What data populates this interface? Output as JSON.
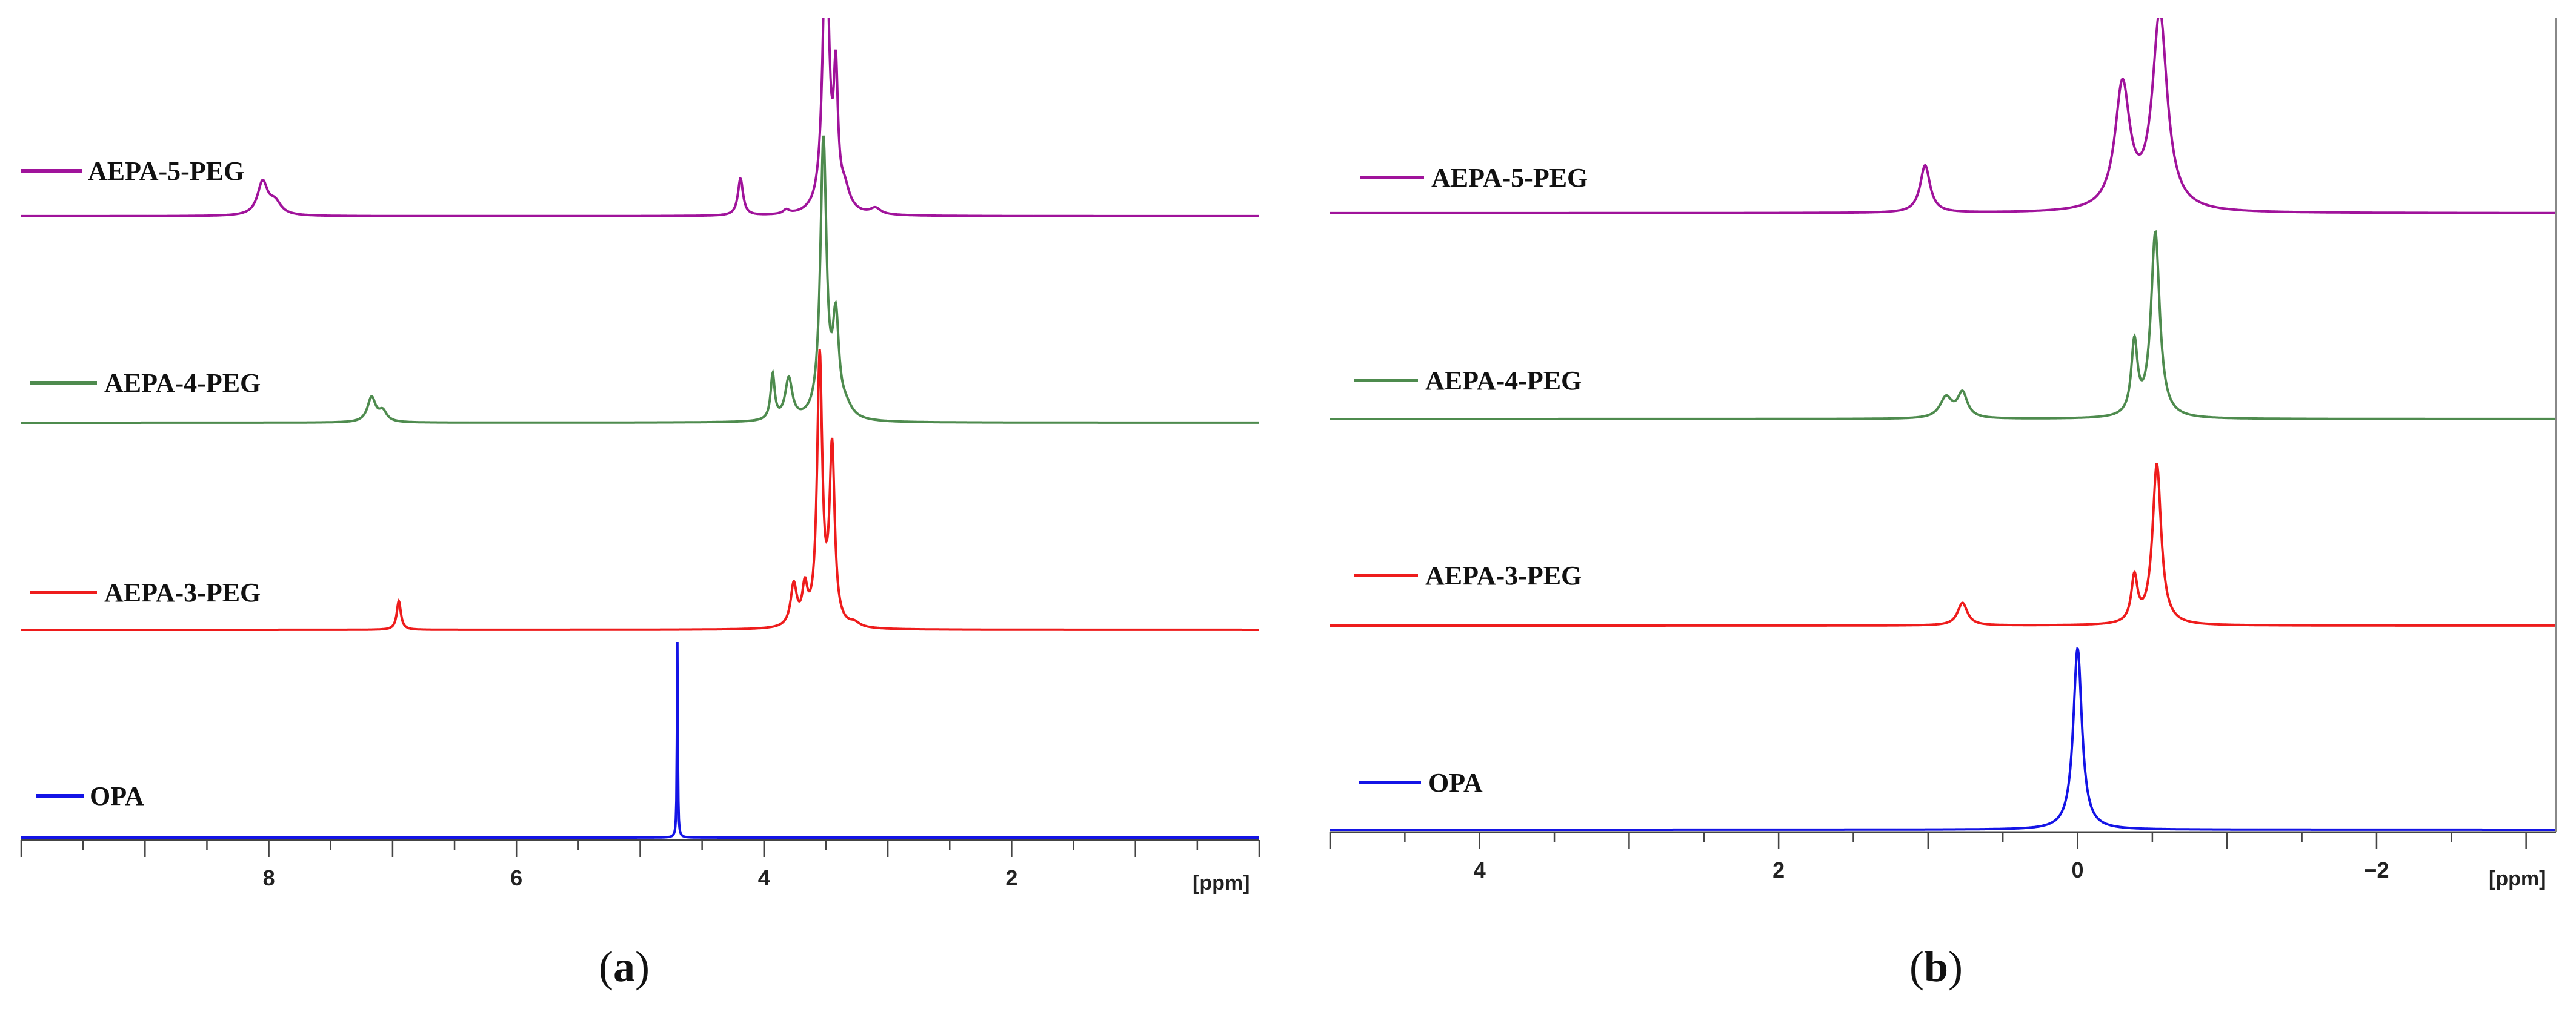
{
  "chart_data": [
    {
      "type": "line",
      "panel_label": "(a)",
      "xlabel": "[ppm]",
      "xlim": [
        10.0,
        0.0
      ],
      "x_ticks": [
        {
          "value": 8,
          "label": "8"
        },
        {
          "value": 6,
          "label": "6"
        },
        {
          "value": 4,
          "label": "4"
        },
        {
          "value": 2,
          "label": "2"
        }
      ],
      "series": [
        {
          "name": "AEPA-5-PEG",
          "color": "#a0139b",
          "offset": 3,
          "peaks": [
            {
              "ppm": 8.05,
              "height": 0.16,
              "width": 0.05
            },
            {
              "ppm": 7.95,
              "height": 0.06,
              "width": 0.06
            },
            {
              "ppm": 4.19,
              "height": 0.18,
              "width": 0.025
            },
            {
              "ppm": 3.82,
              "height": 0.02,
              "width": 0.03
            },
            {
              "ppm": 3.5,
              "height": 1.4,
              "width": 0.03
            },
            {
              "ppm": 3.42,
              "height": 0.6,
              "width": 0.02
            },
            {
              "ppm": 3.35,
              "height": 0.1,
              "width": 0.05
            },
            {
              "ppm": 3.1,
              "height": 0.03,
              "width": 0.05
            }
          ]
        },
        {
          "name": "AEPA-4-PEG",
          "color": "#4e8b4e",
          "offset": 2,
          "peaks": [
            {
              "ppm": 7.17,
              "height": 0.12,
              "width": 0.04
            },
            {
              "ppm": 7.08,
              "height": 0.05,
              "width": 0.04
            },
            {
              "ppm": 3.93,
              "height": 0.22,
              "width": 0.02
            },
            {
              "ppm": 3.8,
              "height": 0.2,
              "width": 0.035
            },
            {
              "ppm": 3.52,
              "height": 1.35,
              "width": 0.03
            },
            {
              "ppm": 3.42,
              "height": 0.45,
              "width": 0.03
            },
            {
              "ppm": 3.34,
              "height": 0.05,
              "width": 0.06
            }
          ]
        },
        {
          "name": "AEPA-3-PEG",
          "color": "#ee1c1c",
          "offset": 1,
          "peaks": [
            {
              "ppm": 6.95,
              "height": 0.14,
              "width": 0.02
            },
            {
              "ppm": 3.76,
              "height": 0.2,
              "width": 0.03
            },
            {
              "ppm": 3.67,
              "height": 0.17,
              "width": 0.025
            },
            {
              "ppm": 3.55,
              "height": 1.3,
              "width": 0.025
            },
            {
              "ppm": 3.45,
              "height": 0.85,
              "width": 0.025
            },
            {
              "ppm": 3.27,
              "height": 0.02,
              "width": 0.05
            }
          ]
        },
        {
          "name": "OPA",
          "color": "#1414e6",
          "offset": 0,
          "peaks": [
            {
              "ppm": 4.7,
              "height": 0.95,
              "width": 0.004
            }
          ]
        }
      ]
    },
    {
      "type": "line",
      "panel_label": "(b)",
      "xlabel": "[ppm]",
      "xlim": [
        5.0,
        -3.2
      ],
      "x_ticks": [
        {
          "value": 4,
          "label": "4"
        },
        {
          "value": 2,
          "label": "2"
        },
        {
          "value": 0,
          "label": "0"
        },
        {
          "value": -2,
          "label": "−2"
        }
      ],
      "series": [
        {
          "name": "AEPA-5-PEG",
          "color": "#a0139b",
          "offset": 3,
          "peaks": [
            {
              "ppm": 1.02,
              "height": 0.23,
              "width": 0.04
            },
            {
              "ppm": -0.3,
              "height": 0.6,
              "width": 0.06
            },
            {
              "ppm": -0.55,
              "height": 0.95,
              "width": 0.06
            }
          ]
        },
        {
          "name": "AEPA-4-PEG",
          "color": "#4e8b4e",
          "offset": 2,
          "peaks": [
            {
              "ppm": 0.88,
              "height": 0.1,
              "width": 0.05
            },
            {
              "ppm": 0.77,
              "height": 0.12,
              "width": 0.04
            },
            {
              "ppm": -0.38,
              "height": 0.35,
              "width": 0.025
            },
            {
              "ppm": -0.52,
              "height": 0.9,
              "width": 0.035
            }
          ]
        },
        {
          "name": "AEPA-3-PEG",
          "color": "#ee1c1c",
          "offset": 1,
          "peaks": [
            {
              "ppm": 0.77,
              "height": 0.11,
              "width": 0.04
            },
            {
              "ppm": -0.38,
              "height": 0.22,
              "width": 0.025
            },
            {
              "ppm": -0.53,
              "height": 0.78,
              "width": 0.035
            }
          ]
        },
        {
          "name": "OPA",
          "color": "#1414e6",
          "offset": 0,
          "peaks": [
            {
              "ppm": 0.0,
              "height": 0.88,
              "width": 0.035
            }
          ]
        }
      ]
    }
  ]
}
